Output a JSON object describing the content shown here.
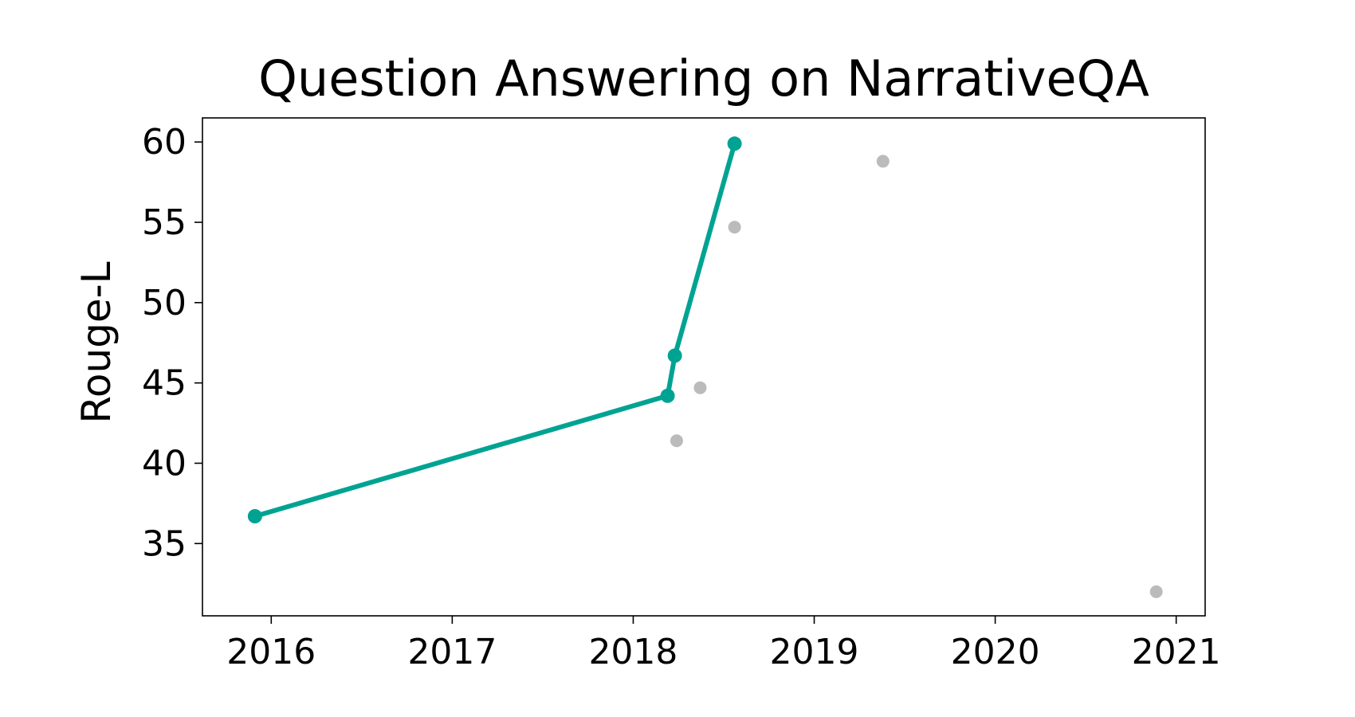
{
  "chart_data": {
    "type": "scatter",
    "title": "Question Answering on NarrativeQA",
    "xlabel": "",
    "ylabel": "Rouge-L",
    "xlim": [
      2015.62,
      2021.16
    ],
    "ylim": [
      30.5,
      61.5
    ],
    "x_ticks": [
      2016,
      2017,
      2018,
      2019,
      2020,
      2021
    ],
    "x_tick_labels": [
      "2016",
      "2017",
      "2018",
      "2019",
      "2020",
      "2021"
    ],
    "y_ticks": [
      35,
      40,
      45,
      50,
      55,
      60
    ],
    "y_tick_labels": [
      "35",
      "40",
      "45",
      "50",
      "55",
      "60"
    ],
    "grid": false,
    "series": [
      {
        "role": "state-of-the-art",
        "color": "#00A392",
        "line": true,
        "points": [
          {
            "x": 2015.91,
            "y": 36.7
          },
          {
            "x": 2018.19,
            "y": 44.2
          },
          {
            "x": 2018.23,
            "y": 46.7
          },
          {
            "x": 2018.56,
            "y": 59.9
          }
        ]
      },
      {
        "role": "other",
        "color": "#BBBBBB",
        "line": false,
        "points": [
          {
            "x": 2018.24,
            "y": 41.4
          },
          {
            "x": 2018.37,
            "y": 44.7
          },
          {
            "x": 2018.56,
            "y": 54.7
          },
          {
            "x": 2019.38,
            "y": 58.8
          },
          {
            "x": 2020.89,
            "y": 32.0
          }
        ]
      }
    ]
  }
}
